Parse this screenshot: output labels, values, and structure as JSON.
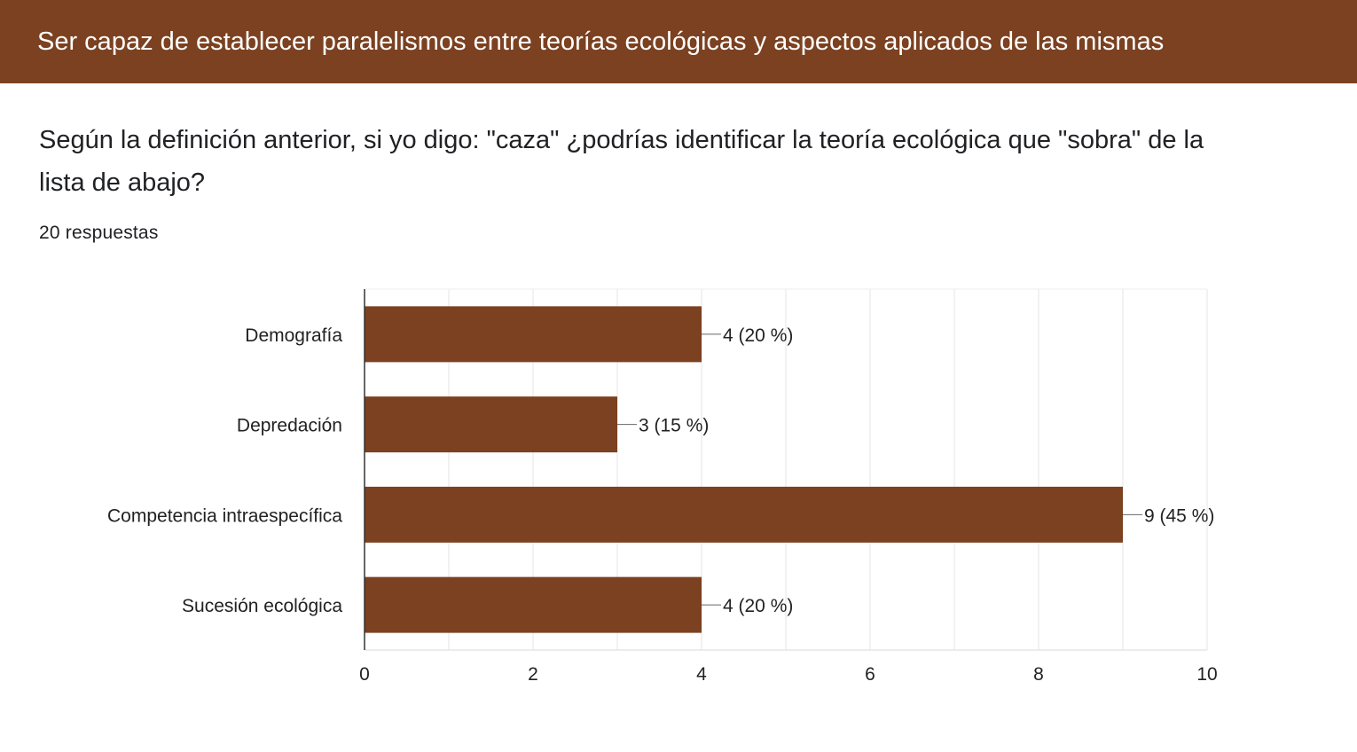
{
  "section": {
    "title": "Ser capaz de establecer paralelismos entre teorías ecológicas y aspectos aplicados de las mismas"
  },
  "question": {
    "title": "Según la definición anterior, si yo digo: \"caza\" ¿podrías identificar la teoría ecológica que \"sobra\" de la lista de abajo?",
    "responses": "20 respuestas"
  },
  "colors": {
    "header": "#7b4120",
    "bar": "#7b4120"
  },
  "chart_data": {
    "type": "bar",
    "orientation": "horizontal",
    "categories": [
      "Demografía",
      "Depredación",
      "Competencia intraespecífica",
      "Sucesión ecológica"
    ],
    "values": [
      4,
      3,
      9,
      4
    ],
    "data_labels": [
      "4 (20 %)",
      "3 (15 %)",
      "9 (45 %)",
      "4 (20 %)"
    ],
    "xlim": [
      0,
      10
    ],
    "xticks": [
      0,
      2,
      4,
      6,
      8,
      10
    ],
    "grid": true
  }
}
